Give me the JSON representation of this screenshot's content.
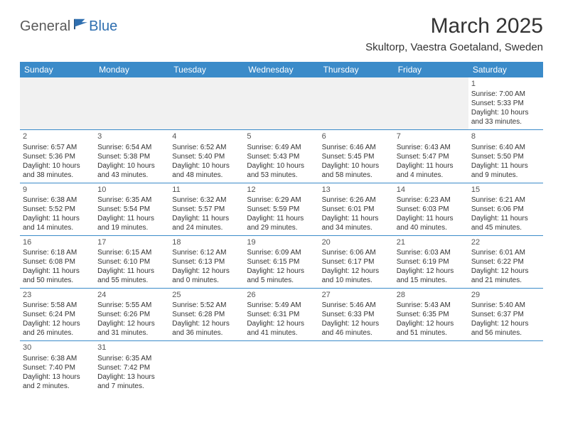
{
  "brand": {
    "part1": "General",
    "part2": "Blue"
  },
  "title": "March 2025",
  "location": "Skultorp, Vaestra Goetaland, Sweden",
  "styling": {
    "header_bg": "#3b8bc9",
    "header_fg": "#ffffff",
    "border_color": "#3b8bc9",
    "blank_bg": "#f1f1f1",
    "page_bg": "#ffffff",
    "text_color": "#333333",
    "title_fontsize": 30,
    "location_fontsize": 15,
    "daynum_fontsize": 11,
    "cell_fontsize": 10
  },
  "weekdays": [
    "Sunday",
    "Monday",
    "Tuesday",
    "Wednesday",
    "Thursday",
    "Friday",
    "Saturday"
  ],
  "weeks": [
    [
      null,
      null,
      null,
      null,
      null,
      null,
      {
        "n": "1",
        "sunrise": "Sunrise: 7:00 AM",
        "sunset": "Sunset: 5:33 PM",
        "daylight1": "Daylight: 10 hours",
        "daylight2": "and 33 minutes."
      }
    ],
    [
      {
        "n": "2",
        "sunrise": "Sunrise: 6:57 AM",
        "sunset": "Sunset: 5:36 PM",
        "daylight1": "Daylight: 10 hours",
        "daylight2": "and 38 minutes."
      },
      {
        "n": "3",
        "sunrise": "Sunrise: 6:54 AM",
        "sunset": "Sunset: 5:38 PM",
        "daylight1": "Daylight: 10 hours",
        "daylight2": "and 43 minutes."
      },
      {
        "n": "4",
        "sunrise": "Sunrise: 6:52 AM",
        "sunset": "Sunset: 5:40 PM",
        "daylight1": "Daylight: 10 hours",
        "daylight2": "and 48 minutes."
      },
      {
        "n": "5",
        "sunrise": "Sunrise: 6:49 AM",
        "sunset": "Sunset: 5:43 PM",
        "daylight1": "Daylight: 10 hours",
        "daylight2": "and 53 minutes."
      },
      {
        "n": "6",
        "sunrise": "Sunrise: 6:46 AM",
        "sunset": "Sunset: 5:45 PM",
        "daylight1": "Daylight: 10 hours",
        "daylight2": "and 58 minutes."
      },
      {
        "n": "7",
        "sunrise": "Sunrise: 6:43 AM",
        "sunset": "Sunset: 5:47 PM",
        "daylight1": "Daylight: 11 hours",
        "daylight2": "and 4 minutes."
      },
      {
        "n": "8",
        "sunrise": "Sunrise: 6:40 AM",
        "sunset": "Sunset: 5:50 PM",
        "daylight1": "Daylight: 11 hours",
        "daylight2": "and 9 minutes."
      }
    ],
    [
      {
        "n": "9",
        "sunrise": "Sunrise: 6:38 AM",
        "sunset": "Sunset: 5:52 PM",
        "daylight1": "Daylight: 11 hours",
        "daylight2": "and 14 minutes."
      },
      {
        "n": "10",
        "sunrise": "Sunrise: 6:35 AM",
        "sunset": "Sunset: 5:54 PM",
        "daylight1": "Daylight: 11 hours",
        "daylight2": "and 19 minutes."
      },
      {
        "n": "11",
        "sunrise": "Sunrise: 6:32 AM",
        "sunset": "Sunset: 5:57 PM",
        "daylight1": "Daylight: 11 hours",
        "daylight2": "and 24 minutes."
      },
      {
        "n": "12",
        "sunrise": "Sunrise: 6:29 AM",
        "sunset": "Sunset: 5:59 PM",
        "daylight1": "Daylight: 11 hours",
        "daylight2": "and 29 minutes."
      },
      {
        "n": "13",
        "sunrise": "Sunrise: 6:26 AM",
        "sunset": "Sunset: 6:01 PM",
        "daylight1": "Daylight: 11 hours",
        "daylight2": "and 34 minutes."
      },
      {
        "n": "14",
        "sunrise": "Sunrise: 6:23 AM",
        "sunset": "Sunset: 6:03 PM",
        "daylight1": "Daylight: 11 hours",
        "daylight2": "and 40 minutes."
      },
      {
        "n": "15",
        "sunrise": "Sunrise: 6:21 AM",
        "sunset": "Sunset: 6:06 PM",
        "daylight1": "Daylight: 11 hours",
        "daylight2": "and 45 minutes."
      }
    ],
    [
      {
        "n": "16",
        "sunrise": "Sunrise: 6:18 AM",
        "sunset": "Sunset: 6:08 PM",
        "daylight1": "Daylight: 11 hours",
        "daylight2": "and 50 minutes."
      },
      {
        "n": "17",
        "sunrise": "Sunrise: 6:15 AM",
        "sunset": "Sunset: 6:10 PM",
        "daylight1": "Daylight: 11 hours",
        "daylight2": "and 55 minutes."
      },
      {
        "n": "18",
        "sunrise": "Sunrise: 6:12 AM",
        "sunset": "Sunset: 6:13 PM",
        "daylight1": "Daylight: 12 hours",
        "daylight2": "and 0 minutes."
      },
      {
        "n": "19",
        "sunrise": "Sunrise: 6:09 AM",
        "sunset": "Sunset: 6:15 PM",
        "daylight1": "Daylight: 12 hours",
        "daylight2": "and 5 minutes."
      },
      {
        "n": "20",
        "sunrise": "Sunrise: 6:06 AM",
        "sunset": "Sunset: 6:17 PM",
        "daylight1": "Daylight: 12 hours",
        "daylight2": "and 10 minutes."
      },
      {
        "n": "21",
        "sunrise": "Sunrise: 6:03 AM",
        "sunset": "Sunset: 6:19 PM",
        "daylight1": "Daylight: 12 hours",
        "daylight2": "and 15 minutes."
      },
      {
        "n": "22",
        "sunrise": "Sunrise: 6:01 AM",
        "sunset": "Sunset: 6:22 PM",
        "daylight1": "Daylight: 12 hours",
        "daylight2": "and 21 minutes."
      }
    ],
    [
      {
        "n": "23",
        "sunrise": "Sunrise: 5:58 AM",
        "sunset": "Sunset: 6:24 PM",
        "daylight1": "Daylight: 12 hours",
        "daylight2": "and 26 minutes."
      },
      {
        "n": "24",
        "sunrise": "Sunrise: 5:55 AM",
        "sunset": "Sunset: 6:26 PM",
        "daylight1": "Daylight: 12 hours",
        "daylight2": "and 31 minutes."
      },
      {
        "n": "25",
        "sunrise": "Sunrise: 5:52 AM",
        "sunset": "Sunset: 6:28 PM",
        "daylight1": "Daylight: 12 hours",
        "daylight2": "and 36 minutes."
      },
      {
        "n": "26",
        "sunrise": "Sunrise: 5:49 AM",
        "sunset": "Sunset: 6:31 PM",
        "daylight1": "Daylight: 12 hours",
        "daylight2": "and 41 minutes."
      },
      {
        "n": "27",
        "sunrise": "Sunrise: 5:46 AM",
        "sunset": "Sunset: 6:33 PM",
        "daylight1": "Daylight: 12 hours",
        "daylight2": "and 46 minutes."
      },
      {
        "n": "28",
        "sunrise": "Sunrise: 5:43 AM",
        "sunset": "Sunset: 6:35 PM",
        "daylight1": "Daylight: 12 hours",
        "daylight2": "and 51 minutes."
      },
      {
        "n": "29",
        "sunrise": "Sunrise: 5:40 AM",
        "sunset": "Sunset: 6:37 PM",
        "daylight1": "Daylight: 12 hours",
        "daylight2": "and 56 minutes."
      }
    ],
    [
      {
        "n": "30",
        "sunrise": "Sunrise: 6:38 AM",
        "sunset": "Sunset: 7:40 PM",
        "daylight1": "Daylight: 13 hours",
        "daylight2": "and 2 minutes."
      },
      {
        "n": "31",
        "sunrise": "Sunrise: 6:35 AM",
        "sunset": "Sunset: 7:42 PM",
        "daylight1": "Daylight: 13 hours",
        "daylight2": "and 7 minutes."
      },
      null,
      null,
      null,
      null,
      null
    ]
  ]
}
